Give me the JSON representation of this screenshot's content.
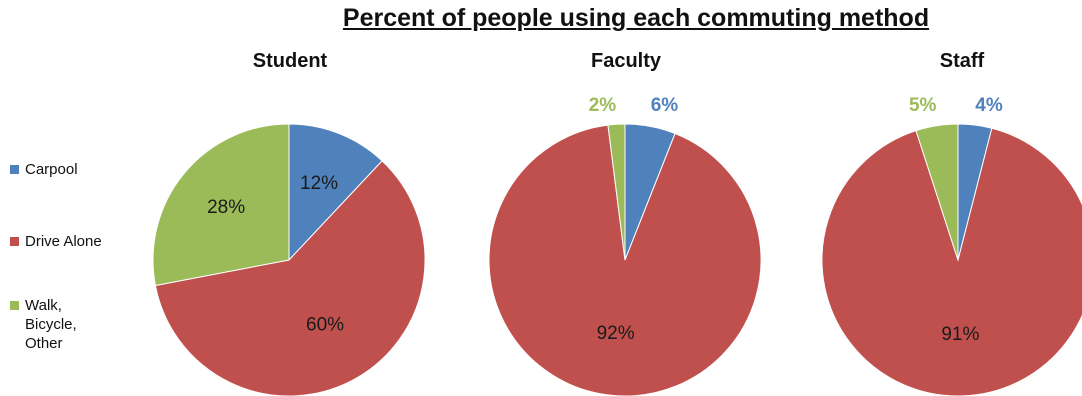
{
  "title": "Percent of people using each commuting method",
  "legend": [
    {
      "label": "Carpool",
      "color": "#4f81bd"
    },
    {
      "label": "Drive Alone",
      "color": "#c0504d"
    },
    {
      "label": "Walk,\nBicycle,\nOther",
      "color": "#9bbb59"
    }
  ],
  "chart_data": [
    {
      "type": "pie",
      "title": "Student",
      "categories": [
        "Carpool",
        "Drive Alone",
        "Walk, Bicycle, Other"
      ],
      "values": [
        12,
        60,
        28
      ],
      "labels": [
        "12%",
        "60%",
        "28%"
      ],
      "colors": [
        "#4f81bd",
        "#c0504d",
        "#9bbb59"
      ]
    },
    {
      "type": "pie",
      "title": "Faculty",
      "categories": [
        "Carpool",
        "Drive Alone",
        "Walk, Bicycle, Other"
      ],
      "values": [
        6,
        92,
        2
      ],
      "labels": [
        "6%",
        "92%",
        "2%"
      ],
      "colors": [
        "#4f81bd",
        "#c0504d",
        "#9bbb59"
      ]
    },
    {
      "type": "pie",
      "title": "Staff",
      "categories": [
        "Carpool",
        "Drive Alone",
        "Walk, Bicycle, Other"
      ],
      "values": [
        4,
        91,
        5
      ],
      "labels": [
        "4%",
        "91%",
        "5%"
      ],
      "colors": [
        "#4f81bd",
        "#c0504d",
        "#9bbb59"
      ]
    }
  ]
}
